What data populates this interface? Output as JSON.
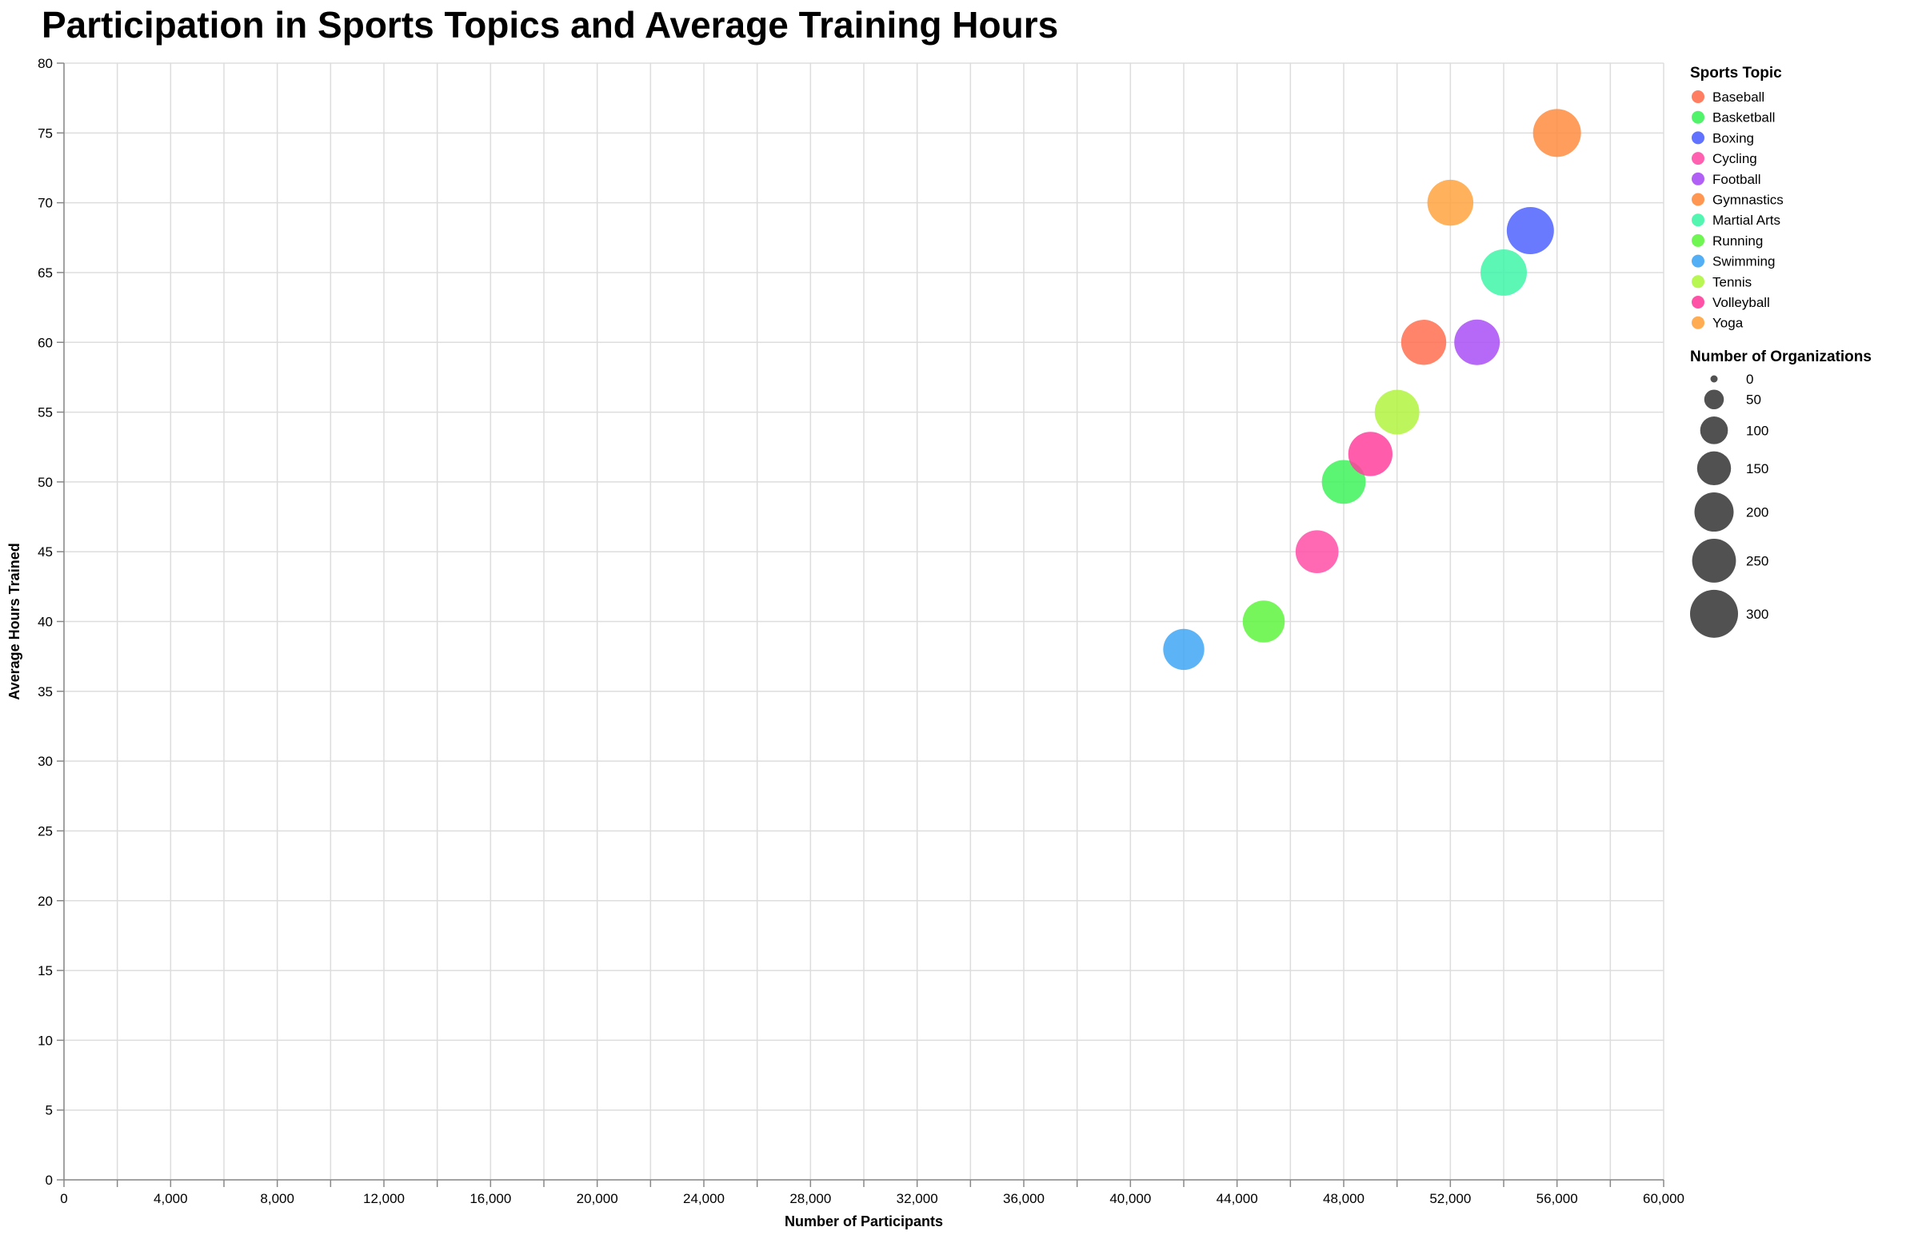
{
  "chart_data": {
    "type": "scatter",
    "title": "Participation in Sports Topics and Average Training Hours",
    "xlabel": "Number of Participants",
    "ylabel": "Average Hours Trained",
    "xlim": [
      0,
      60000
    ],
    "ylim": [
      0,
      80
    ],
    "x_ticks": [
      0,
      4000,
      8000,
      12000,
      16000,
      20000,
      24000,
      28000,
      32000,
      36000,
      40000,
      44000,
      48000,
      52000,
      56000,
      60000
    ],
    "y_ticks": [
      0,
      5,
      10,
      15,
      20,
      25,
      30,
      35,
      40,
      45,
      50,
      55,
      60,
      65,
      70,
      75,
      80
    ],
    "grid": true,
    "legend_position": "right",
    "color_legend_title": "Sports Topic",
    "size_legend_title": "Number of Organizations",
    "size_legend_values": [
      0,
      50,
      100,
      150,
      200,
      250,
      300
    ],
    "size_max_domain": 300,
    "categories": [
      {
        "name": "Baseball",
        "color": "#ff6f4f"
      },
      {
        "name": "Basketball",
        "color": "#3ef25a"
      },
      {
        "name": "Boxing",
        "color": "#4f63ff"
      },
      {
        "name": "Cycling",
        "color": "#ff4fa7"
      },
      {
        "name": "Football",
        "color": "#a94ff5"
      },
      {
        "name": "Gymnastics",
        "color": "#ff8c3f"
      },
      {
        "name": "Martial Arts",
        "color": "#3ff5a8"
      },
      {
        "name": "Running",
        "color": "#5ff53f"
      },
      {
        "name": "Swimming",
        "color": "#3fa6f5"
      },
      {
        "name": "Tennis",
        "color": "#b0f53f"
      },
      {
        "name": "Volleyball",
        "color": "#ff3f9c"
      },
      {
        "name": "Yoga",
        "color": "#ffa33f"
      }
    ],
    "points": [
      {
        "topic": "Swimming",
        "participants": 42000,
        "hours": 38,
        "organizations": 220
      },
      {
        "topic": "Running",
        "participants": 45000,
        "hours": 40,
        "organizations": 230
      },
      {
        "topic": "Cycling",
        "participants": 47000,
        "hours": 45,
        "organizations": 240
      },
      {
        "topic": "Basketball",
        "participants": 48000,
        "hours": 50,
        "organizations": 250
      },
      {
        "topic": "Volleyball",
        "participants": 49000,
        "hours": 52,
        "organizations": 255
      },
      {
        "topic": "Tennis",
        "participants": 50000,
        "hours": 55,
        "organizations": 260
      },
      {
        "topic": "Baseball",
        "participants": 51000,
        "hours": 60,
        "organizations": 265
      },
      {
        "topic": "Yoga",
        "participants": 52000,
        "hours": 70,
        "organizations": 275
      },
      {
        "topic": "Football",
        "participants": 53000,
        "hours": 60,
        "organizations": 270
      },
      {
        "topic": "Martial Arts",
        "participants": 54000,
        "hours": 65,
        "organizations": 280
      },
      {
        "topic": "Boxing",
        "participants": 55000,
        "hours": 68,
        "organizations": 290
      },
      {
        "topic": "Gymnastics",
        "participants": 56000,
        "hours": 75,
        "organizations": 300
      }
    ]
  }
}
